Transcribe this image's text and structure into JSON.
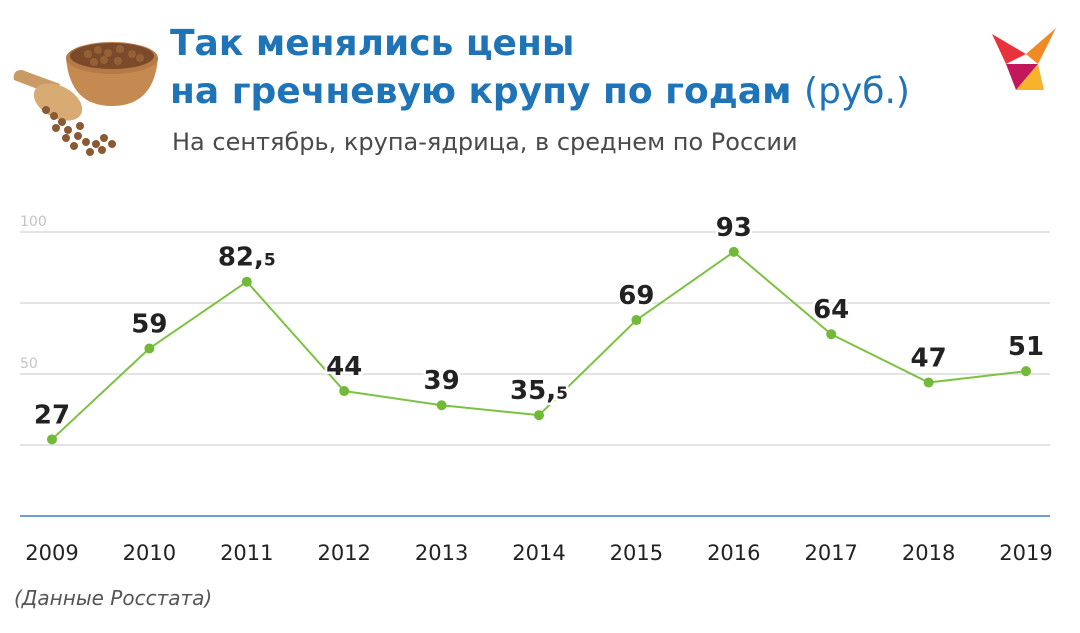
{
  "header": {
    "title_line1": "Так менялись цены",
    "title_line2": "на гречневую крупу по годам",
    "title_unit": "(руб.)",
    "subtitle": "На сентябрь, крупа-ядрица, в среднем по России",
    "illustration_icon": "buckwheat-bowl-icon",
    "logo_icon": "kp-bird-logo-icon"
  },
  "colors": {
    "title": "#1f73b7",
    "line": "#7cc242",
    "point": "#72b93a",
    "axis": "#3f7fc6",
    "grid": "#dcdcdc",
    "labels": "#222222"
  },
  "chart_data": {
    "type": "line",
    "categories": [
      "2009",
      "2010",
      "2011",
      "2012",
      "2013",
      "2014",
      "2015",
      "2016",
      "2017",
      "2018",
      "2019"
    ],
    "values": [
      27,
      59,
      82.5,
      44,
      39,
      35.5,
      69,
      93,
      64,
      47,
      51
    ],
    "data_labels": [
      {
        "main": "27",
        "dec": ""
      },
      {
        "main": "59",
        "dec": ""
      },
      {
        "main": "82,",
        "dec": "5"
      },
      {
        "main": "44",
        "dec": ""
      },
      {
        "main": "39",
        "dec": ""
      },
      {
        "main": "35,",
        "dec": "5"
      },
      {
        "main": "69",
        "dec": ""
      },
      {
        "main": "93",
        "dec": ""
      },
      {
        "main": "64",
        "dec": ""
      },
      {
        "main": "47",
        "dec": ""
      },
      {
        "main": "51",
        "dec": ""
      }
    ],
    "y_ticks": [
      {
        "value": 100,
        "label": "100"
      },
      {
        "value": 50,
        "label": "50"
      }
    ],
    "gridlines": [
      100,
      75,
      50,
      25
    ],
    "ylim": [
      0,
      100
    ],
    "grid": true,
    "legend": "none"
  },
  "source": "(Данные Росстата)"
}
